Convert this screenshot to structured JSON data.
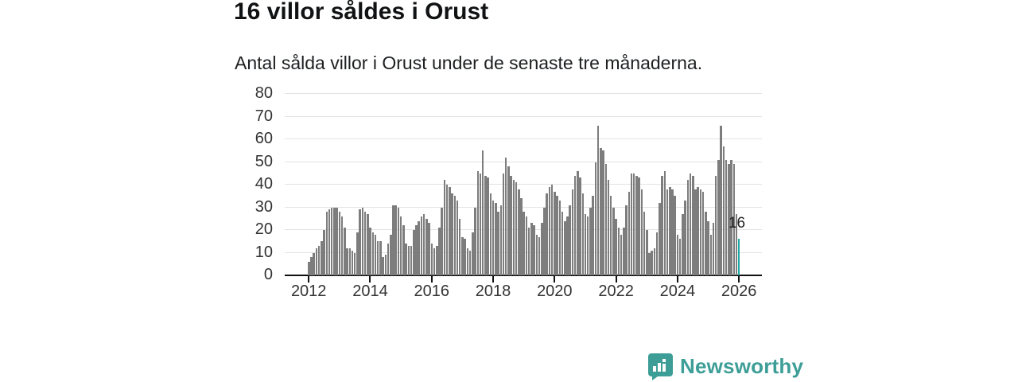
{
  "header": {
    "title": "16 villor såldes i Orust",
    "subtitle": "Antal sålda villor i Orust under de senaste tre månaderna."
  },
  "chart_data": {
    "type": "bar",
    "title": "16 villor såldes i Orust",
    "subtitle": "Antal sålda villor i Orust under de senaste tre månaderna.",
    "x_start": "2012-01",
    "frequency": "monthly",
    "ylim": [
      0,
      80
    ],
    "yticks": [
      0,
      10,
      20,
      30,
      40,
      50,
      60,
      70,
      80
    ],
    "xtick_years": [
      2012,
      2014,
      2016,
      2018,
      2020,
      2022,
      2024,
      2026
    ],
    "grid": true,
    "bar_color": "#7d7d7d",
    "highlight_color": "#1da9a2",
    "gridline_color": "#e3e3e3",
    "axis_color": "#111111",
    "tick_label_color": "#333333",
    "highlighted_last_value": 16,
    "last_value_label": "16",
    "values": [
      6,
      8,
      10,
      12,
      13,
      15,
      20,
      28,
      29,
      30,
      30,
      30,
      28,
      26,
      21,
      12,
      12,
      11,
      10,
      19,
      29,
      30,
      28,
      27,
      21,
      19,
      18,
      15,
      15,
      8,
      9,
      14,
      18,
      31,
      31,
      30,
      26,
      22,
      14,
      13,
      13,
      20,
      22,
      24,
      26,
      27,
      25,
      23,
      14,
      12,
      13,
      21,
      30,
      42,
      40,
      39,
      36,
      35,
      33,
      25,
      17,
      16,
      12,
      11,
      19,
      30,
      46,
      45,
      55,
      44,
      43,
      36,
      33,
      32,
      28,
      31,
      45,
      52,
      48,
      44,
      42,
      41,
      38,
      34,
      28,
      26,
      21,
      23,
      22,
      18,
      17,
      23,
      30,
      36,
      39,
      40,
      37,
      35,
      33,
      28,
      24,
      26,
      31,
      38,
      44,
      46,
      43,
      36,
      27,
      26,
      30,
      35,
      50,
      66,
      56,
      55,
      49,
      42,
      35,
      30,
      25,
      21,
      18,
      21,
      31,
      37,
      45,
      45,
      44,
      43,
      38,
      28,
      20,
      10,
      11,
      12,
      19,
      32,
      44,
      46,
      38,
      39,
      38,
      35,
      18,
      16,
      27,
      33,
      42,
      45,
      44,
      38,
      39,
      38,
      37,
      28,
      24,
      18,
      23,
      44,
      51,
      66,
      57,
      51,
      49,
      51,
      49,
      27,
      16
    ]
  },
  "footer": {
    "brand": "Newsworthy",
    "brand_color": "#3d9e97",
    "logo_icon": "newsworthy-speech-bubble-chart-icon"
  }
}
